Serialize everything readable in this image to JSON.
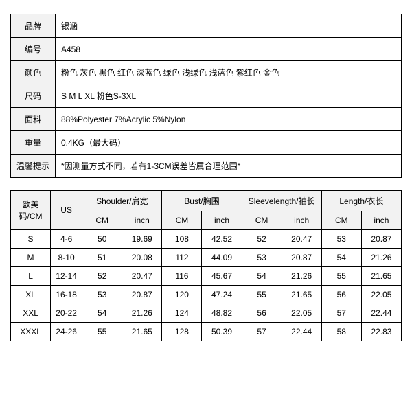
{
  "info": {
    "rows": [
      {
        "label": "品牌",
        "value": "银涵"
      },
      {
        "label": "编号",
        "value": "A458"
      },
      {
        "label": "颜色",
        "value": "粉色  灰色  黑色  红色  深蓝色  绿色  浅绿色  浅蓝色  紫红色  金色"
      },
      {
        "label": "尺码",
        "value": "S M L XL   粉色S-3XL"
      },
      {
        "label": "面料",
        "value": "88%Polyester  7%Acrylic  5%Nylon"
      },
      {
        "label": "重量",
        "value": "0.4KG（最大码）"
      },
      {
        "label": "温馨提示",
        "value": "*因测量方式不同，若有1-3CM误差皆属合理范围*"
      }
    ],
    "header_bg": "#f2f2f2",
    "border_color": "#000000"
  },
  "size": {
    "header": {
      "eu": "欧美码/CM",
      "us": "US",
      "groups": [
        "Shoulder/肩宽",
        "Bust/胸围",
        "Sleevelength/袖长",
        "Length/衣长"
      ],
      "sub": [
        "CM",
        "inch"
      ]
    },
    "rows": [
      {
        "eu": "S",
        "us": "4-6",
        "vals": [
          "50",
          "19.69",
          "108",
          "42.52",
          "52",
          "20.47",
          "53",
          "20.87"
        ]
      },
      {
        "eu": "M",
        "us": "8-10",
        "vals": [
          "51",
          "20.08",
          "112",
          "44.09",
          "53",
          "20.87",
          "54",
          "21.26"
        ]
      },
      {
        "eu": "L",
        "us": "12-14",
        "vals": [
          "52",
          "20.47",
          "116",
          "45.67",
          "54",
          "21.26",
          "55",
          "21.65"
        ]
      },
      {
        "eu": "XL",
        "us": "16-18",
        "vals": [
          "53",
          "20.87",
          "120",
          "47.24",
          "55",
          "21.65",
          "56",
          "22.05"
        ]
      },
      {
        "eu": "XXL",
        "us": "20-22",
        "vals": [
          "54",
          "21.26",
          "124",
          "48.82",
          "56",
          "22.05",
          "57",
          "22.44"
        ]
      },
      {
        "eu": "XXXL",
        "us": "24-26",
        "vals": [
          "55",
          "21.65",
          "128",
          "50.39",
          "57",
          "22.44",
          "58",
          "22.83"
        ]
      }
    ],
    "header_bg": "#f2f2f2",
    "border_color": "#000000",
    "font_size_pt": 9
  }
}
